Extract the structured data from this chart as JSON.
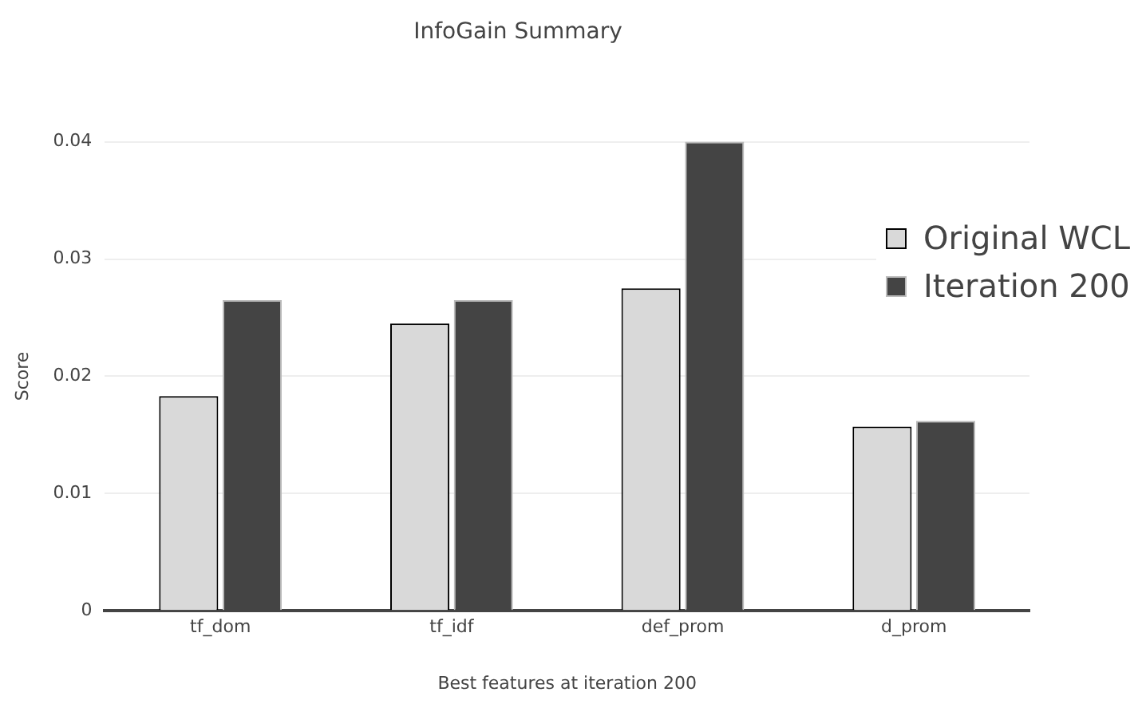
{
  "chart_data": {
    "type": "bar",
    "title": "InfoGain Summary",
    "xlabel": "Best features at iteration 200",
    "ylabel": "Score",
    "categories": [
      "tf_dom",
      "tf_idf",
      "def_prom",
      "d_prom"
    ],
    "series": [
      {
        "name": "Original WCL",
        "color": "#d9d9d9",
        "values": [
          0.0183,
          0.0245,
          0.0275,
          0.0157
        ]
      },
      {
        "name": "Iteration 200",
        "color": "#444444",
        "values": [
          0.0265,
          0.0265,
          0.04,
          0.0162
        ]
      }
    ],
    "ylim": [
      0,
      0.04
    ],
    "yticks": [
      0,
      0.01,
      0.02,
      0.03,
      0.04
    ],
    "grid": "y",
    "legend": "top right"
  }
}
